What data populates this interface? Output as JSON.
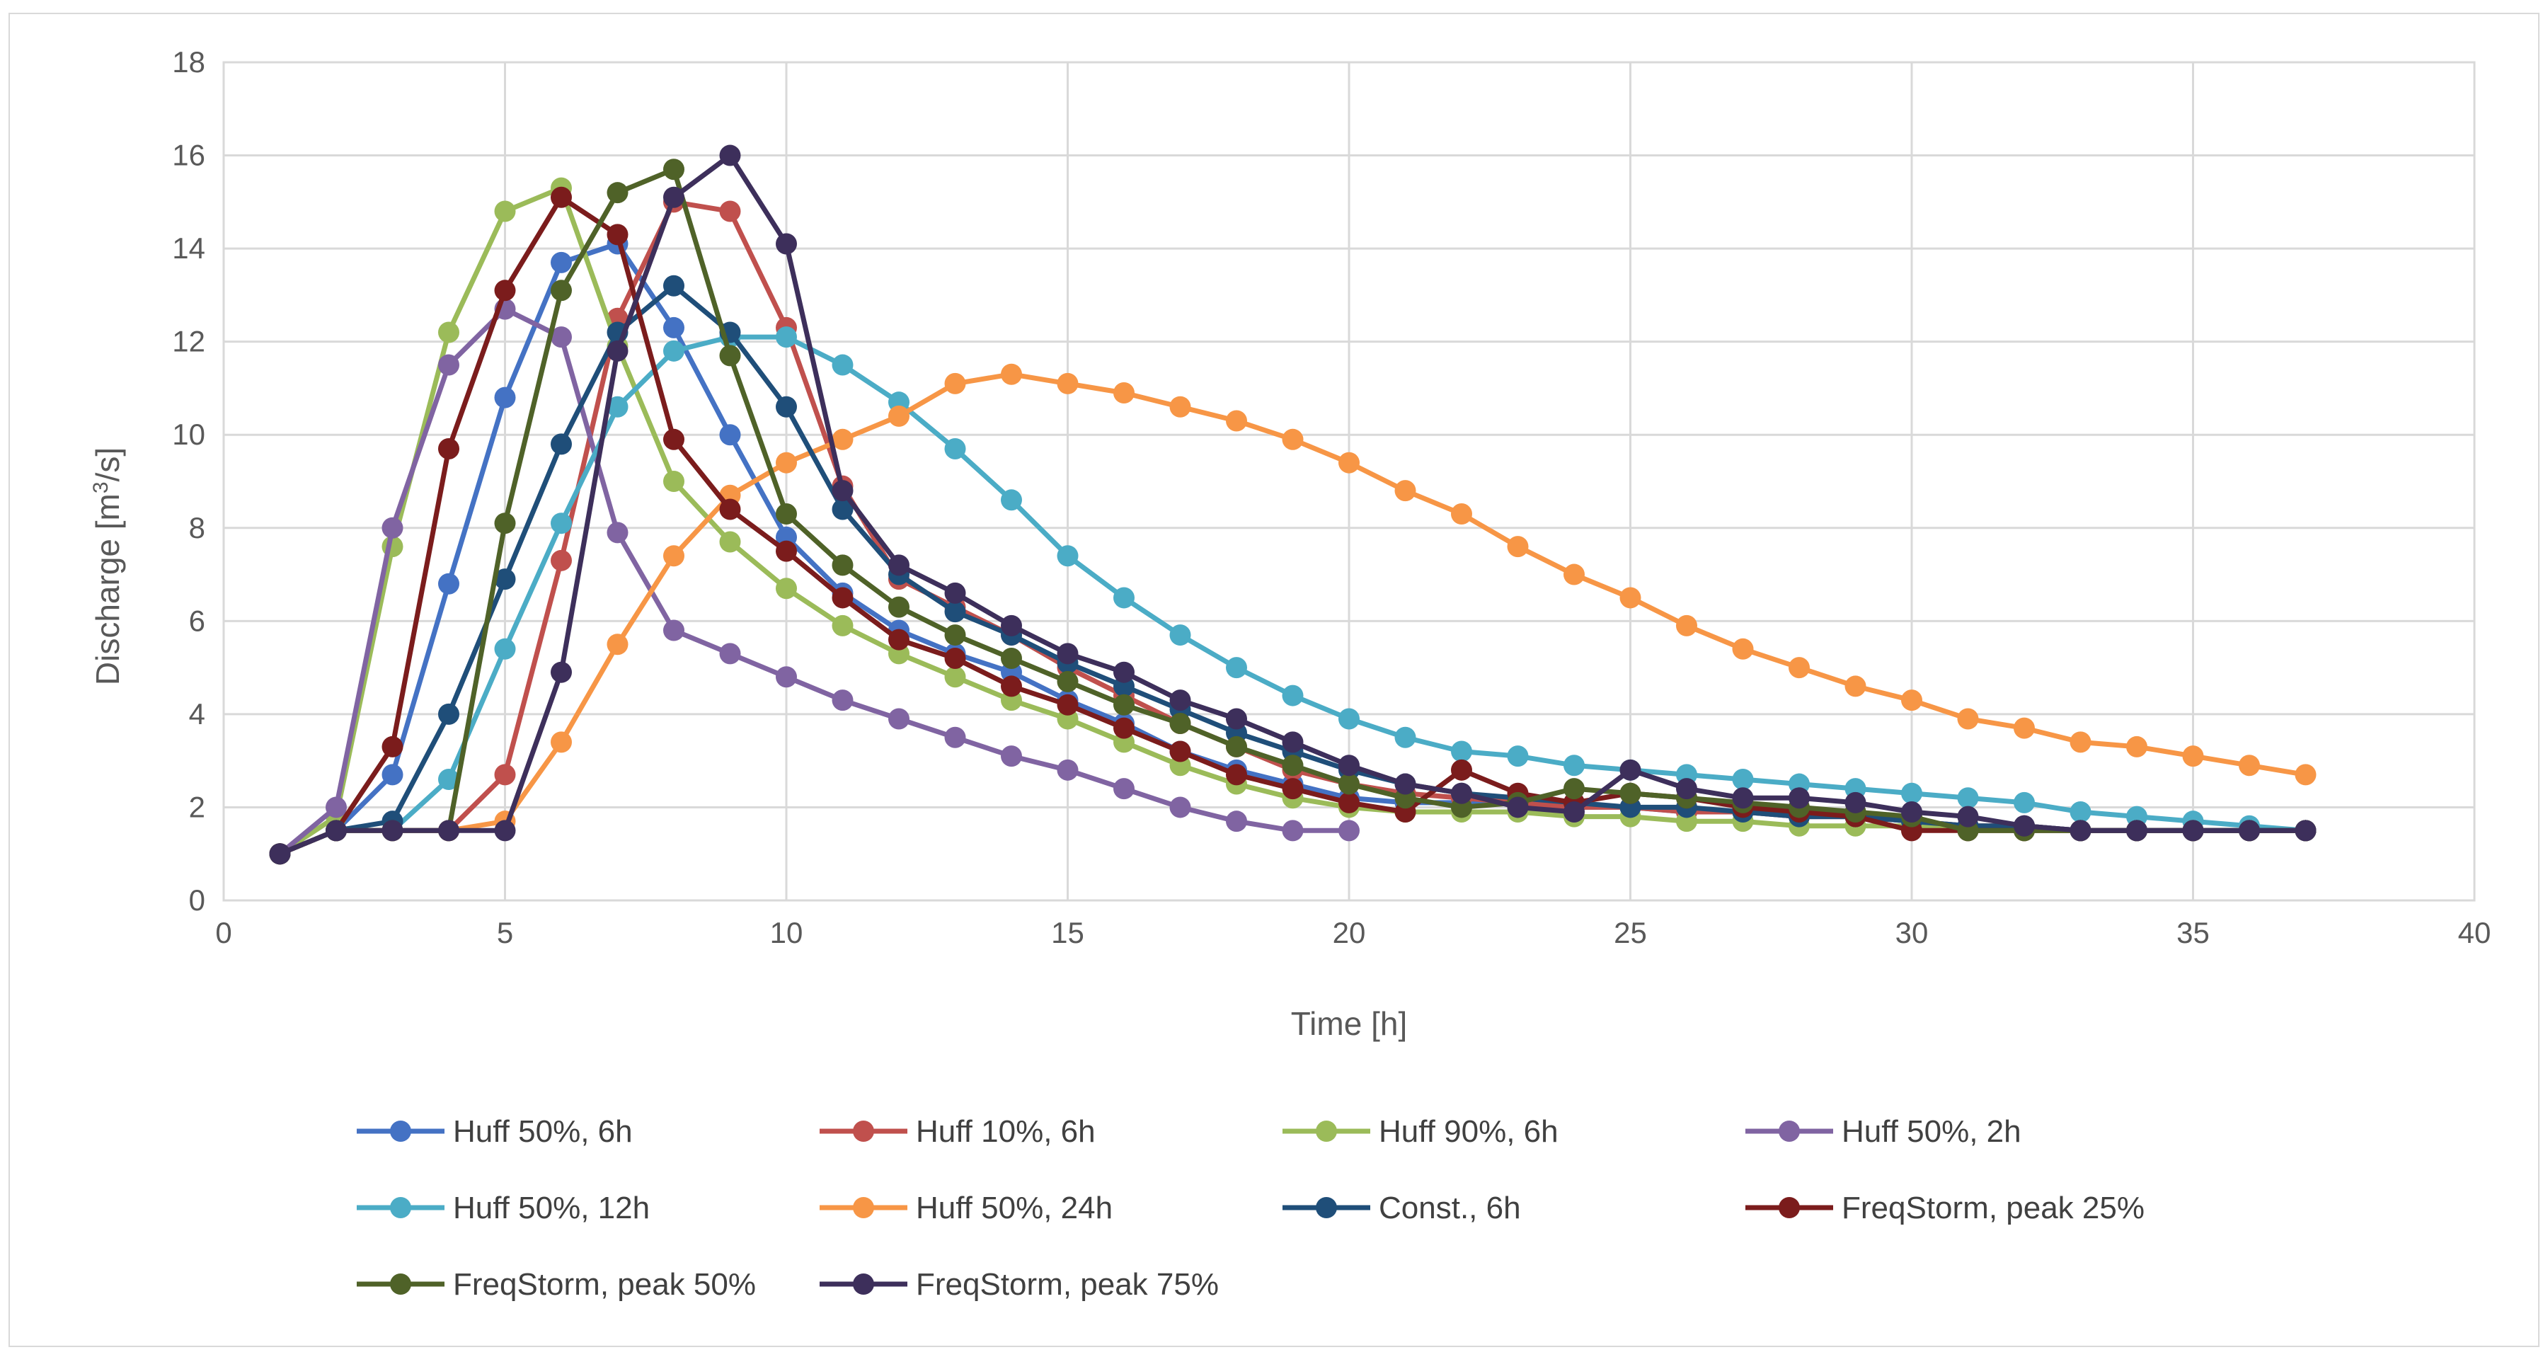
{
  "chart_data": {
    "type": "line",
    "title": "",
    "xlabel": "Time [h]",
    "ylabel_prefix": "Discharge [m",
    "ylabel_sup": "3",
    "ylabel_suffix": "/s]",
    "xlim": [
      0,
      40
    ],
    "ylim": [
      0,
      18
    ],
    "xticks": [
      0,
      5,
      10,
      15,
      20,
      25,
      30,
      35,
      40
    ],
    "yticks": [
      0,
      2,
      4,
      6,
      8,
      10,
      12,
      14,
      16,
      18
    ],
    "grid": true,
    "legend_position": "bottom",
    "series": [
      {
        "name": "Huff 50%, 6h",
        "color": "#4472c4",
        "x": [
          1,
          2,
          3,
          4,
          5,
          6,
          7,
          8,
          9,
          10,
          11,
          12,
          13,
          14,
          15,
          16,
          17,
          18,
          19,
          20,
          21,
          22,
          23,
          24,
          25,
          26,
          27,
          28,
          29,
          30,
          31,
          32,
          33,
          34,
          35,
          36,
          37
        ],
        "y": [
          1,
          1.5,
          2.7,
          6.8,
          10.8,
          13.7,
          14.1,
          12.3,
          10,
          7.8,
          6.6,
          5.8,
          5.3,
          4.9,
          4.3,
          3.8,
          3.2,
          2.8,
          2.5,
          2.2,
          2.1,
          2.1,
          2.1,
          2.0,
          2.0,
          1.9,
          1.9,
          1.8,
          1.8,
          1.7,
          1.6,
          1.6,
          1.5,
          1.5,
          1.5,
          1.5,
          1.5
        ]
      },
      {
        "name": "Huff 10%, 6h",
        "color": "#c0504d",
        "x": [
          1,
          2,
          3,
          4,
          5,
          6,
          7,
          8,
          9,
          10,
          11,
          12,
          13,
          14,
          15,
          16,
          17,
          18,
          19,
          20,
          21,
          22,
          23,
          24,
          25,
          26,
          27,
          28,
          29,
          30,
          31,
          32,
          33,
          34,
          35,
          36,
          37
        ],
        "y": [
          1,
          1.5,
          1.5,
          1.5,
          2.7,
          7.3,
          12.5,
          15,
          14.8,
          12.3,
          8.9,
          6.9,
          6.3,
          5.7,
          5.0,
          4.4,
          3.8,
          3.3,
          2.8,
          2.5,
          2.3,
          2.2,
          2.1,
          2.0,
          2.0,
          1.9,
          1.9,
          1.8,
          1.8,
          1.7,
          1.6,
          1.6,
          1.5,
          1.5,
          1.5,
          1.5,
          1.5
        ]
      },
      {
        "name": "Huff 90%, 6h",
        "color": "#9bbb59",
        "x": [
          1,
          2,
          3,
          4,
          5,
          6,
          7,
          8,
          9,
          10,
          11,
          12,
          13,
          14,
          15,
          16,
          17,
          18,
          19,
          20,
          21,
          22,
          23,
          24,
          25,
          26,
          27,
          28,
          29,
          30,
          31,
          32,
          33,
          34,
          35,
          36,
          37
        ],
        "y": [
          1,
          1.8,
          7.6,
          12.2,
          14.8,
          15.3,
          11.9,
          9,
          7.7,
          6.7,
          5.9,
          5.3,
          4.8,
          4.3,
          3.9,
          3.4,
          2.9,
          2.5,
          2.2,
          2.0,
          1.9,
          1.9,
          1.9,
          1.8,
          1.8,
          1.7,
          1.7,
          1.6,
          1.6,
          1.6,
          1.5,
          1.5,
          1.5,
          1.5,
          1.5,
          1.5,
          1.5
        ]
      },
      {
        "name": "Huff 50%, 2h",
        "color": "#8064a2",
        "x": [
          1,
          2,
          3,
          4,
          5,
          6,
          7,
          8,
          9,
          10,
          11,
          12,
          13,
          14,
          15,
          16,
          17,
          18,
          19,
          20
        ],
        "y": [
          1,
          2,
          8,
          11.5,
          12.7,
          12.1,
          7.9,
          5.8,
          5.3,
          4.8,
          4.3,
          3.9,
          3.5,
          3.1,
          2.8,
          2.4,
          2.0,
          1.7,
          1.5,
          1.5
        ]
      },
      {
        "name": "Huff 50%, 12h",
        "color": "#4bacc6",
        "x": [
          1,
          2,
          3,
          4,
          5,
          6,
          7,
          8,
          9,
          10,
          11,
          12,
          13,
          14,
          15,
          16,
          17,
          18,
          19,
          20,
          21,
          22,
          23,
          24,
          25,
          26,
          27,
          28,
          29,
          30,
          31,
          32,
          33,
          34,
          35,
          36,
          37
        ],
        "y": [
          1,
          1.5,
          1.5,
          2.6,
          5.4,
          8.1,
          10.6,
          11.8,
          12.1,
          12.1,
          11.5,
          10.7,
          9.7,
          8.6,
          7.4,
          6.5,
          5.7,
          5.0,
          4.4,
          3.9,
          3.5,
          3.2,
          3.1,
          2.9,
          2.8,
          2.7,
          2.6,
          2.5,
          2.4,
          2.3,
          2.2,
          2.1,
          1.9,
          1.8,
          1.7,
          1.6,
          1.5
        ]
      },
      {
        "name": "Huff 50%, 24h",
        "color": "#f79646",
        "x": [
          1,
          2,
          3,
          4,
          5,
          6,
          7,
          8,
          9,
          10,
          11,
          12,
          13,
          14,
          15,
          16,
          17,
          18,
          19,
          20,
          21,
          22,
          23,
          24,
          25,
          26,
          27,
          28,
          29,
          30,
          31,
          32,
          33,
          34,
          35,
          36,
          37
        ],
        "y": [
          1,
          1.5,
          1.5,
          1.5,
          1.7,
          3.4,
          5.5,
          7.4,
          8.7,
          9.4,
          9.9,
          10.4,
          11.1,
          11.3,
          11.1,
          10.9,
          10.6,
          10.3,
          9.9,
          9.4,
          8.8,
          8.3,
          7.6,
          7.0,
          6.5,
          5.9,
          5.4,
          5.0,
          4.6,
          4.3,
          3.9,
          3.7,
          3.4,
          3.3,
          3.1,
          2.9,
          2.7
        ]
      },
      {
        "name": "Const., 6h",
        "color": "#1f4e79",
        "x": [
          1,
          2,
          3,
          4,
          5,
          6,
          7,
          8,
          9,
          10,
          11,
          12,
          13,
          14,
          15,
          16,
          17,
          18,
          19,
          20,
          21,
          22,
          23,
          24,
          25,
          26,
          27,
          28,
          29,
          30,
          31,
          32,
          33,
          34,
          35,
          36,
          37
        ],
        "y": [
          1,
          1.5,
          1.7,
          4,
          6.9,
          9.8,
          12.2,
          13.2,
          12.2,
          10.6,
          8.4,
          7,
          6.2,
          5.7,
          5.1,
          4.6,
          4.1,
          3.6,
          3.2,
          2.8,
          2.5,
          2.3,
          2.2,
          2.1,
          2.0,
          2.0,
          1.9,
          1.8,
          1.8,
          1.7,
          1.6,
          1.6,
          1.5,
          1.5,
          1.5,
          1.5,
          1.5
        ]
      },
      {
        "name": "FreqStorm, peak 25%",
        "color": "#7b1c1c",
        "x": [
          1,
          2,
          3,
          4,
          5,
          6,
          7,
          8,
          9,
          10,
          11,
          12,
          13,
          14,
          15,
          16,
          17,
          18,
          19,
          20,
          21,
          22,
          23,
          24,
          25,
          26,
          27,
          28,
          29,
          30,
          31,
          32,
          33,
          34,
          35,
          36,
          37
        ],
        "y": [
          1,
          1.5,
          3.3,
          9.7,
          13.1,
          15.1,
          14.3,
          9.9,
          8.4,
          7.5,
          6.5,
          5.6,
          5.2,
          4.6,
          4.2,
          3.7,
          3.2,
          2.7,
          2.4,
          2.1,
          1.9,
          2.8,
          2.3,
          2.1,
          2.3,
          2.2,
          2.0,
          1.9,
          1.8,
          1.5,
          1.5,
          1.5,
          1.5,
          1.5,
          1.5,
          1.5,
          1.5
        ]
      },
      {
        "name": "FreqStorm, peak 50%",
        "color": "#4f6228",
        "x": [
          1,
          2,
          3,
          4,
          5,
          6,
          7,
          8,
          9,
          10,
          11,
          12,
          13,
          14,
          15,
          16,
          17,
          18,
          19,
          20,
          21,
          22,
          23,
          24,
          25,
          26,
          27,
          28,
          29,
          30,
          31,
          32,
          33,
          34,
          35,
          36,
          37
        ],
        "y": [
          1,
          1.5,
          1.5,
          1.5,
          8.1,
          13.1,
          15.2,
          15.7,
          11.7,
          8.3,
          7.2,
          6.3,
          5.7,
          5.2,
          4.7,
          4.2,
          3.8,
          3.3,
          2.9,
          2.5,
          2.2,
          2.0,
          2.1,
          2.4,
          2.3,
          2.2,
          2.1,
          2.0,
          1.9,
          1.8,
          1.5,
          1.5,
          1.5,
          1.5,
          1.5,
          1.5,
          1.5
        ]
      },
      {
        "name": "FreqStorm, peak 75%",
        "color": "#3d2f5b",
        "x": [
          1,
          2,
          3,
          4,
          5,
          6,
          7,
          8,
          9,
          10,
          11,
          12,
          13,
          14,
          15,
          16,
          17,
          18,
          19,
          20,
          21,
          22,
          23,
          24,
          25,
          26,
          27,
          28,
          29,
          30,
          31,
          32,
          33,
          34,
          35,
          36,
          37
        ],
        "y": [
          1,
          1.5,
          1.5,
          1.5,
          1.5,
          4.9,
          11.8,
          15.1,
          16,
          14.1,
          8.8,
          7.2,
          6.6,
          5.9,
          5.3,
          4.9,
          4.3,
          3.9,
          3.4,
          2.9,
          2.5,
          2.3,
          2.0,
          1.9,
          2.8,
          2.4,
          2.2,
          2.2,
          2.1,
          1.9,
          1.8,
          1.6,
          1.5,
          1.5,
          1.5,
          1.5,
          1.5
        ]
      }
    ]
  }
}
